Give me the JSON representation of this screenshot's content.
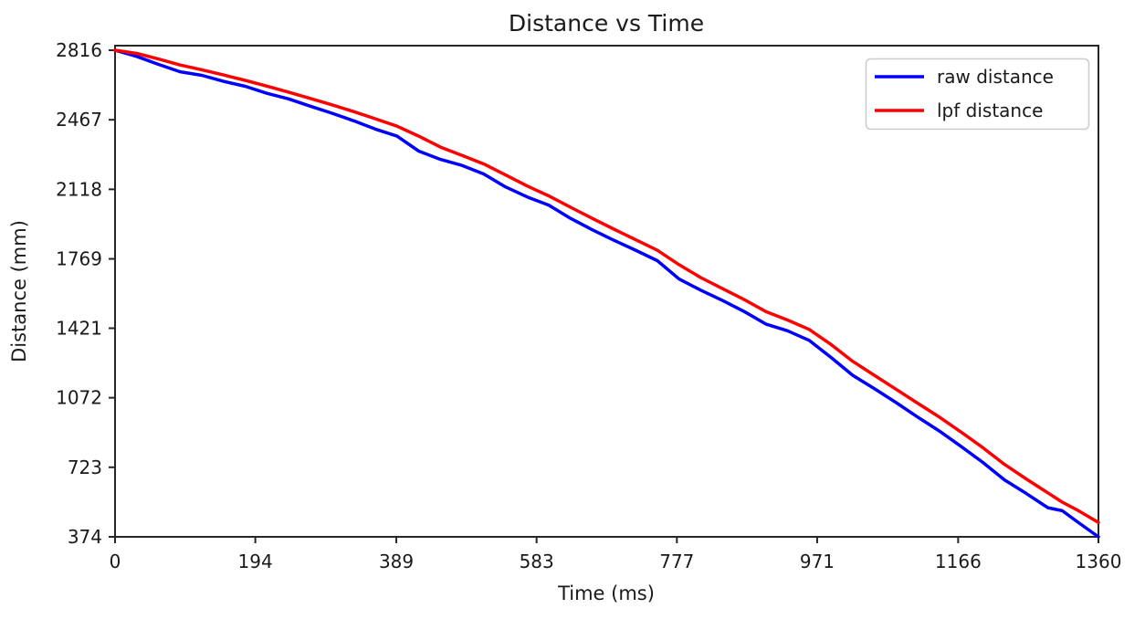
{
  "title": "Distance vs Time",
  "axes": {
    "xlabel": "Time (ms)",
    "ylabel": "Distance (mm)",
    "xticks": [
      0,
      194,
      389,
      583,
      777,
      971,
      1166,
      1360
    ],
    "yticks": [
      374,
      723,
      1072,
      1421,
      1769,
      2118,
      2467,
      2816
    ]
  },
  "legend": {
    "position": "upper right",
    "entries": [
      "raw distance",
      "lpf distance"
    ]
  },
  "colors": {
    "raw_line": "#0000ff",
    "lpf_line": "#ff0000",
    "axis": "#262626",
    "text": "#1a1a1a",
    "legend_border": "#cccccc",
    "background": "#ffffff"
  },
  "chart_data": {
    "type": "line",
    "title": "Distance vs Time",
    "xlabel": "Time (ms)",
    "ylabel": "Distance (mm)",
    "xlim": [
      0,
      1360
    ],
    "ylim": [
      374,
      2839
    ],
    "grid": false,
    "legend_position": "upper right",
    "x": [
      0,
      30,
      60,
      90,
      120,
      150,
      180,
      210,
      240,
      270,
      300,
      330,
      360,
      390,
      420,
      450,
      480,
      510,
      540,
      570,
      600,
      630,
      660,
      690,
      720,
      750,
      780,
      810,
      840,
      870,
      900,
      930,
      960,
      990,
      1020,
      1050,
      1080,
      1110,
      1140,
      1170,
      1200,
      1230,
      1260,
      1290,
      1310,
      1330,
      1360
    ],
    "series": [
      {
        "name": "raw distance",
        "color": "#0000ff",
        "values": [
          2816,
          2785,
          2745,
          2708,
          2690,
          2660,
          2635,
          2600,
          2572,
          2535,
          2500,
          2462,
          2420,
          2385,
          2310,
          2268,
          2238,
          2195,
          2130,
          2080,
          2038,
          1972,
          1915,
          1862,
          1812,
          1760,
          1668,
          1612,
          1560,
          1505,
          1442,
          1408,
          1360,
          1275,
          1185,
          1118,
          1048,
          975,
          905,
          828,
          748,
          660,
          592,
          520,
          505,
          452,
          374
        ]
      },
      {
        "name": "lpf distance",
        "color": "#ff0000",
        "values": [
          2816,
          2800,
          2772,
          2742,
          2718,
          2692,
          2665,
          2636,
          2606,
          2574,
          2542,
          2508,
          2472,
          2435,
          2385,
          2330,
          2288,
          2245,
          2190,
          2135,
          2085,
          2028,
          1972,
          1918,
          1865,
          1812,
          1740,
          1675,
          1620,
          1565,
          1505,
          1462,
          1415,
          1340,
          1255,
          1185,
          1115,
          1045,
          975,
          900,
          822,
          738,
          665,
          595,
          548,
          510,
          446
        ]
      }
    ]
  }
}
